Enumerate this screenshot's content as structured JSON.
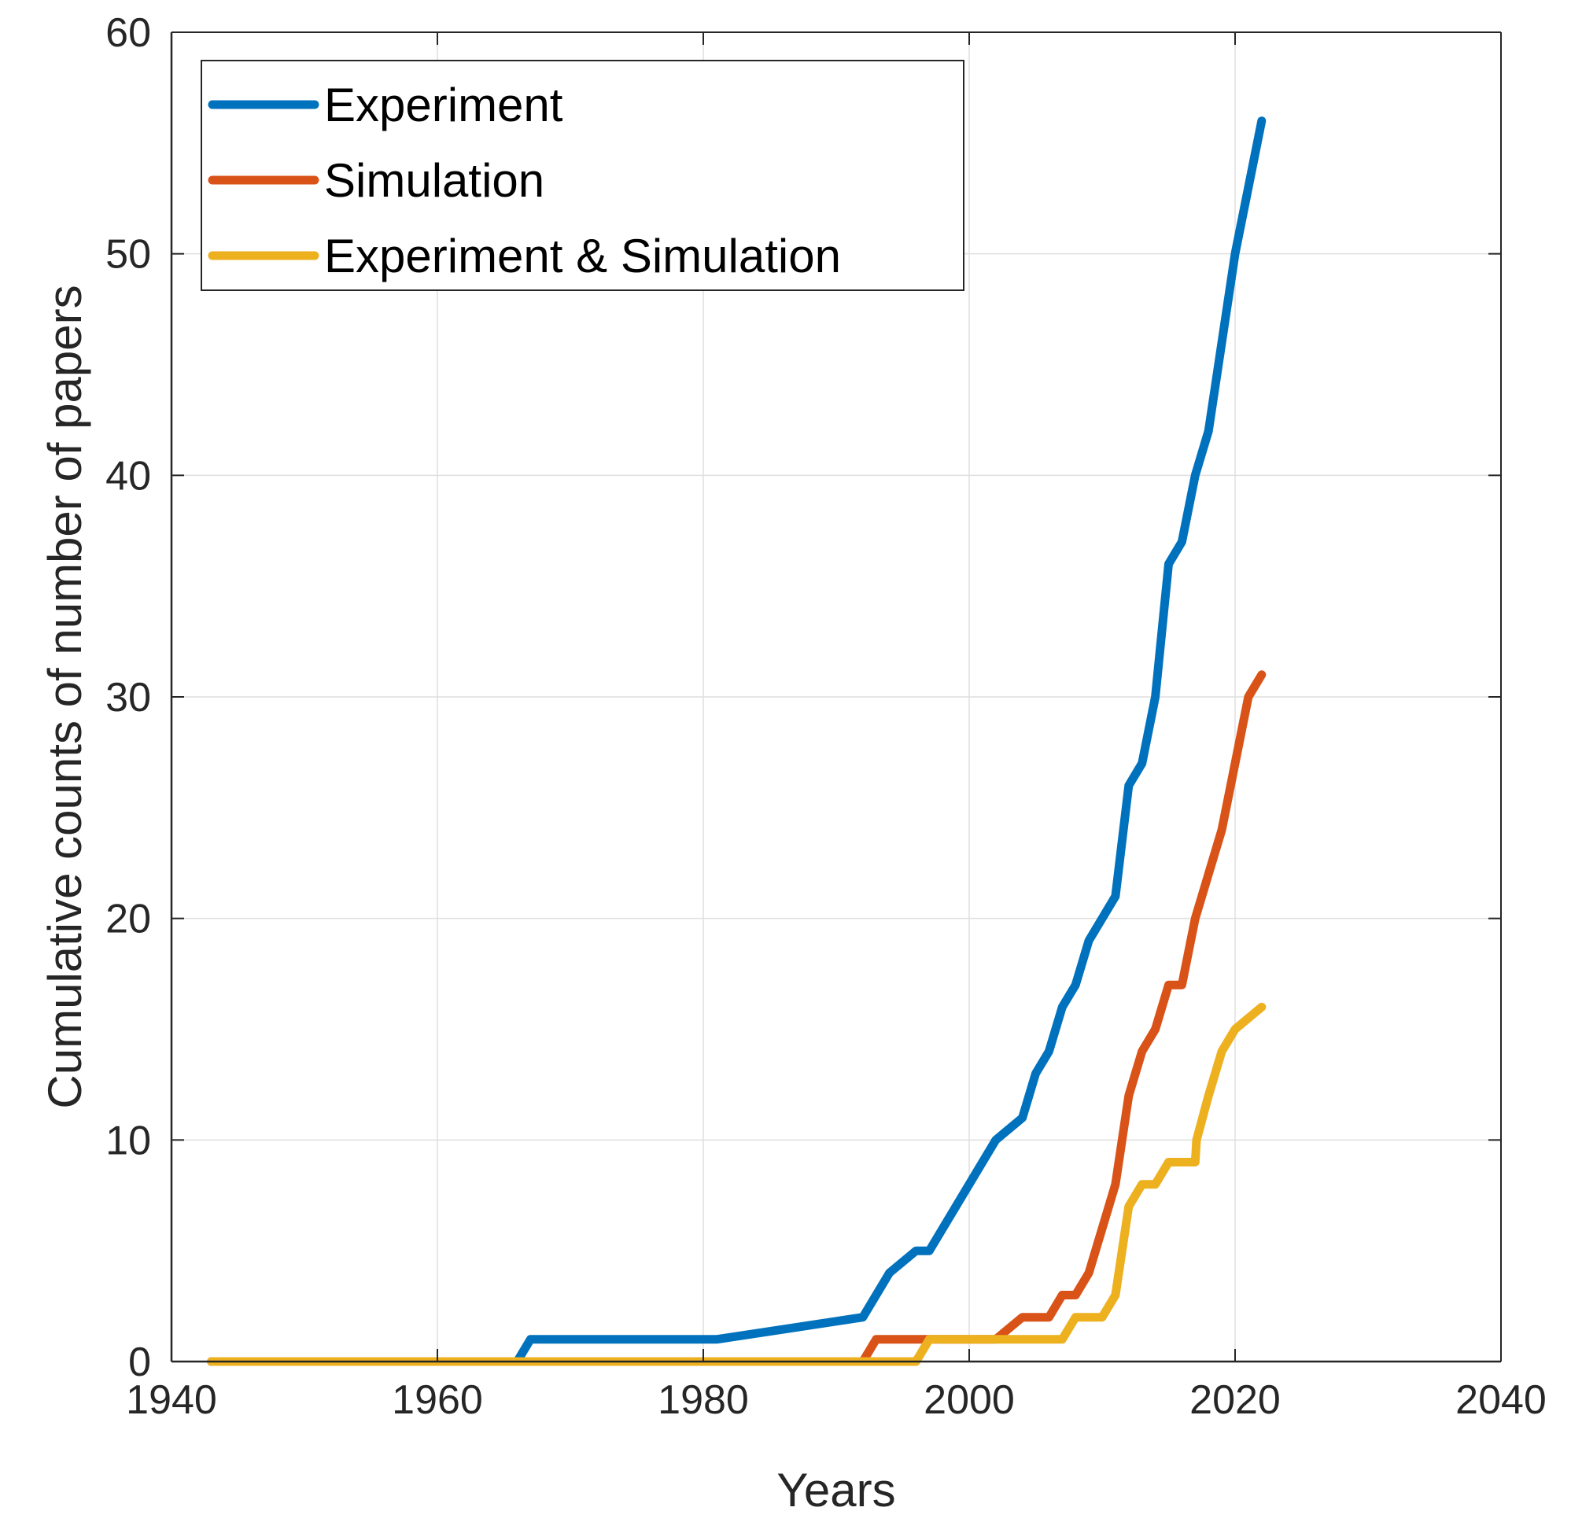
{
  "chart_data": {
    "type": "line",
    "title": "",
    "xlabel": "Years",
    "ylabel": "Cumulative counts of number of papers",
    "xlim": [
      1940,
      2040
    ],
    "ylim": [
      0,
      60
    ],
    "xticks": [
      1940,
      1960,
      1980,
      2000,
      2020,
      2040
    ],
    "yticks": [
      0,
      10,
      20,
      30,
      40,
      50,
      60
    ],
    "grid": true,
    "legend": "top-left",
    "series": [
      {
        "name": "Experiment",
        "color": "#0072BD",
        "x": [
          1943,
          1966,
          1967,
          1981,
          1992,
          1994,
          1996,
          1997,
          2002,
          2004,
          2005,
          2006,
          2007,
          2008,
          2009,
          2011,
          2012,
          2013,
          2014,
          2015,
          2016,
          2017,
          2018,
          2019,
          2020,
          2021,
          2022
        ],
        "y": [
          0,
          0,
          1,
          1,
          2,
          4,
          5,
          5,
          10,
          11,
          13,
          14,
          16,
          17,
          19,
          21,
          26,
          27,
          30,
          36,
          37,
          40,
          42,
          46,
          50,
          53,
          56
        ]
      },
      {
        "name": "Simulation",
        "color": "#D95319",
        "x": [
          1943,
          1992,
          1993,
          1997,
          2002,
          2004,
          2006,
          2007,
          2008,
          2009,
          2010,
          2011,
          2012,
          2013,
          2014,
          2015,
          2016,
          2017,
          2018,
          2019,
          2020,
          2021,
          2022
        ],
        "y": [
          0,
          0,
          1,
          1,
          1,
          2,
          2,
          3,
          3,
          4,
          6,
          8,
          12,
          14,
          15,
          17,
          17,
          20,
          22,
          24,
          27,
          30,
          31
        ]
      },
      {
        "name": "Experiment & Simulation",
        "color": "#EDB120",
        "x": [
          1943,
          1996,
          1997,
          2007,
          2008,
          2010,
          2011,
          2012,
          2013,
          2014,
          2015,
          2017,
          2017.1,
          2018,
          2019,
          2020,
          2021,
          2022
        ],
        "y": [
          0,
          0,
          1,
          1,
          2,
          2,
          3,
          7,
          8,
          8,
          9,
          9,
          10,
          12,
          14,
          15,
          15.5,
          16
        ]
      }
    ]
  }
}
